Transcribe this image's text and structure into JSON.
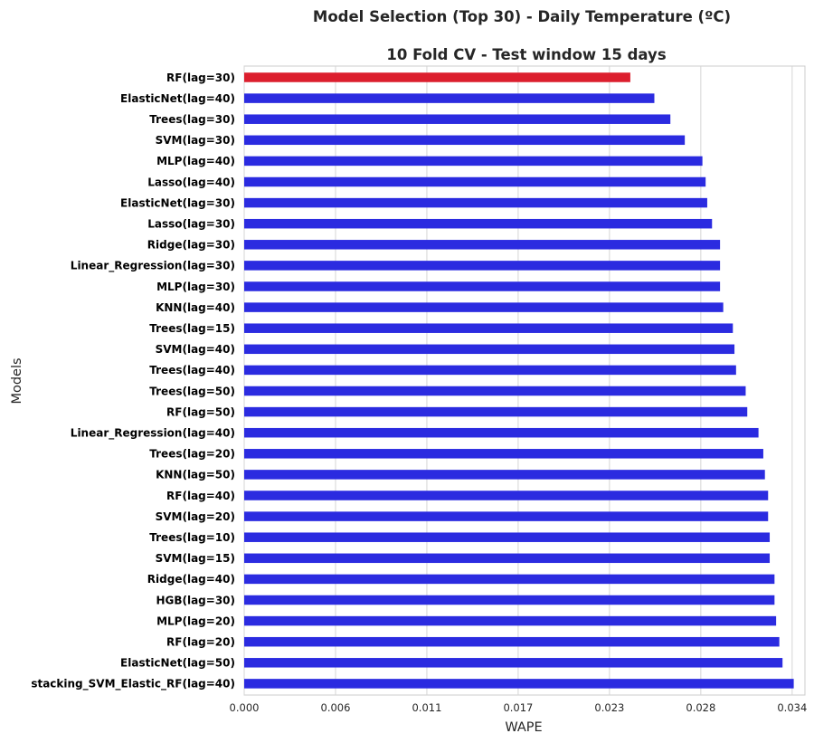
{
  "chart_data": {
    "type": "bar",
    "orientation": "horizontal",
    "title": "Model Selection (Top 30) - Daily Temperature (ºC)",
    "subtitle": "10 Fold CV - Test window 15 days",
    "xlabel": "WAPE",
    "ylabel": "Models",
    "xlim": [
      0,
      0.035
    ],
    "xticks": [
      0.0,
      0.0057,
      0.0114,
      0.0171,
      0.0228,
      0.0285,
      0.0342
    ],
    "xtick_labels": [
      "0.000",
      "0.006",
      "0.011",
      "0.017",
      "0.023",
      "0.028",
      "0.034"
    ],
    "grid": "vertical",
    "highlight_color": "#dc1e2d",
    "bar_color": "#2b2be0",
    "categories": [
      "RF(lag=30)",
      "ElasticNet(lag=40)",
      "Trees(lag=30)",
      "SVM(lag=30)",
      "MLP(lag=40)",
      "Lasso(lag=40)",
      "ElasticNet(lag=30)",
      "Lasso(lag=30)",
      "Ridge(lag=30)",
      "Linear_Regression(lag=30)",
      "MLP(lag=30)",
      "KNN(lag=40)",
      "Trees(lag=15)",
      "SVM(lag=40)",
      "Trees(lag=40)",
      "Trees(lag=50)",
      "RF(lag=50)",
      "Linear_Regression(lag=40)",
      "Trees(lag=20)",
      "KNN(lag=50)",
      "RF(lag=40)",
      "SVM(lag=20)",
      "Trees(lag=10)",
      "SVM(lag=15)",
      "Ridge(lag=40)",
      "HGB(lag=30)",
      "MLP(lag=20)",
      "RF(lag=20)",
      "ElasticNet(lag=50)",
      "stacking_SVM_Elastic_RF(lag=40)"
    ],
    "values": [
      0.0241,
      0.0256,
      0.0266,
      0.0275,
      0.0286,
      0.0288,
      0.0289,
      0.0292,
      0.0297,
      0.0297,
      0.0297,
      0.0299,
      0.0305,
      0.0306,
      0.0307,
      0.0313,
      0.0314,
      0.0321,
      0.0324,
      0.0325,
      0.0327,
      0.0327,
      0.0328,
      0.0328,
      0.0331,
      0.0331,
      0.0332,
      0.0334,
      0.0336,
      0.0343
    ],
    "highlight_index": 0
  }
}
